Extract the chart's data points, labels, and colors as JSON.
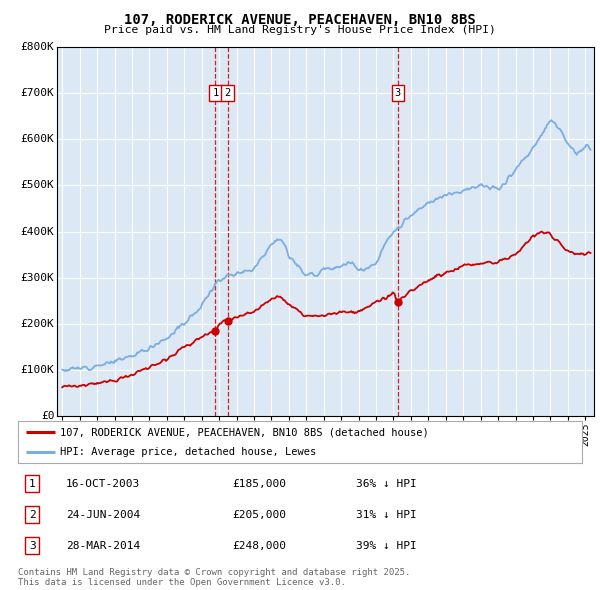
{
  "title": "107, RODERICK AVENUE, PEACEHAVEN, BN10 8BS",
  "subtitle": "Price paid vs. HM Land Registry's House Price Index (HPI)",
  "ylim": [
    0,
    800000
  ],
  "yticks": [
    0,
    100000,
    200000,
    300000,
    400000,
    500000,
    600000,
    700000,
    800000
  ],
  "ytick_labels": [
    "£0",
    "£100K",
    "£200K",
    "£300K",
    "£400K",
    "£500K",
    "£600K",
    "£700K",
    "£800K"
  ],
  "xlim_start": 1994.7,
  "xlim_end": 2025.5,
  "bg_color": "#dce9f5",
  "grid_color": "#ffffff",
  "sale_dates": [
    2003.79,
    2004.48,
    2014.24
  ],
  "sale_prices": [
    185000,
    205000,
    248000
  ],
  "sale_labels": [
    "1",
    "2",
    "3"
  ],
  "sale_info": [
    {
      "num": "1",
      "date": "16-OCT-2003",
      "price": "£185,000",
      "hpi": "36% ↓ HPI"
    },
    {
      "num": "2",
      "date": "24-JUN-2004",
      "price": "£205,000",
      "hpi": "31% ↓ HPI"
    },
    {
      "num": "3",
      "date": "28-MAR-2014",
      "price": "£248,000",
      "hpi": "39% ↓ HPI"
    }
  ],
  "legend_property": "107, RODERICK AVENUE, PEACEHAVEN, BN10 8BS (detached house)",
  "legend_hpi": "HPI: Average price, detached house, Lewes",
  "footer": "Contains HM Land Registry data © Crown copyright and database right 2025.\nThis data is licensed under the Open Government Licence v3.0.",
  "property_line_color": "#cc0000",
  "hpi_line_color": "#7aade0",
  "vline_color": "#cc0000",
  "dot_color": "#cc0000"
}
